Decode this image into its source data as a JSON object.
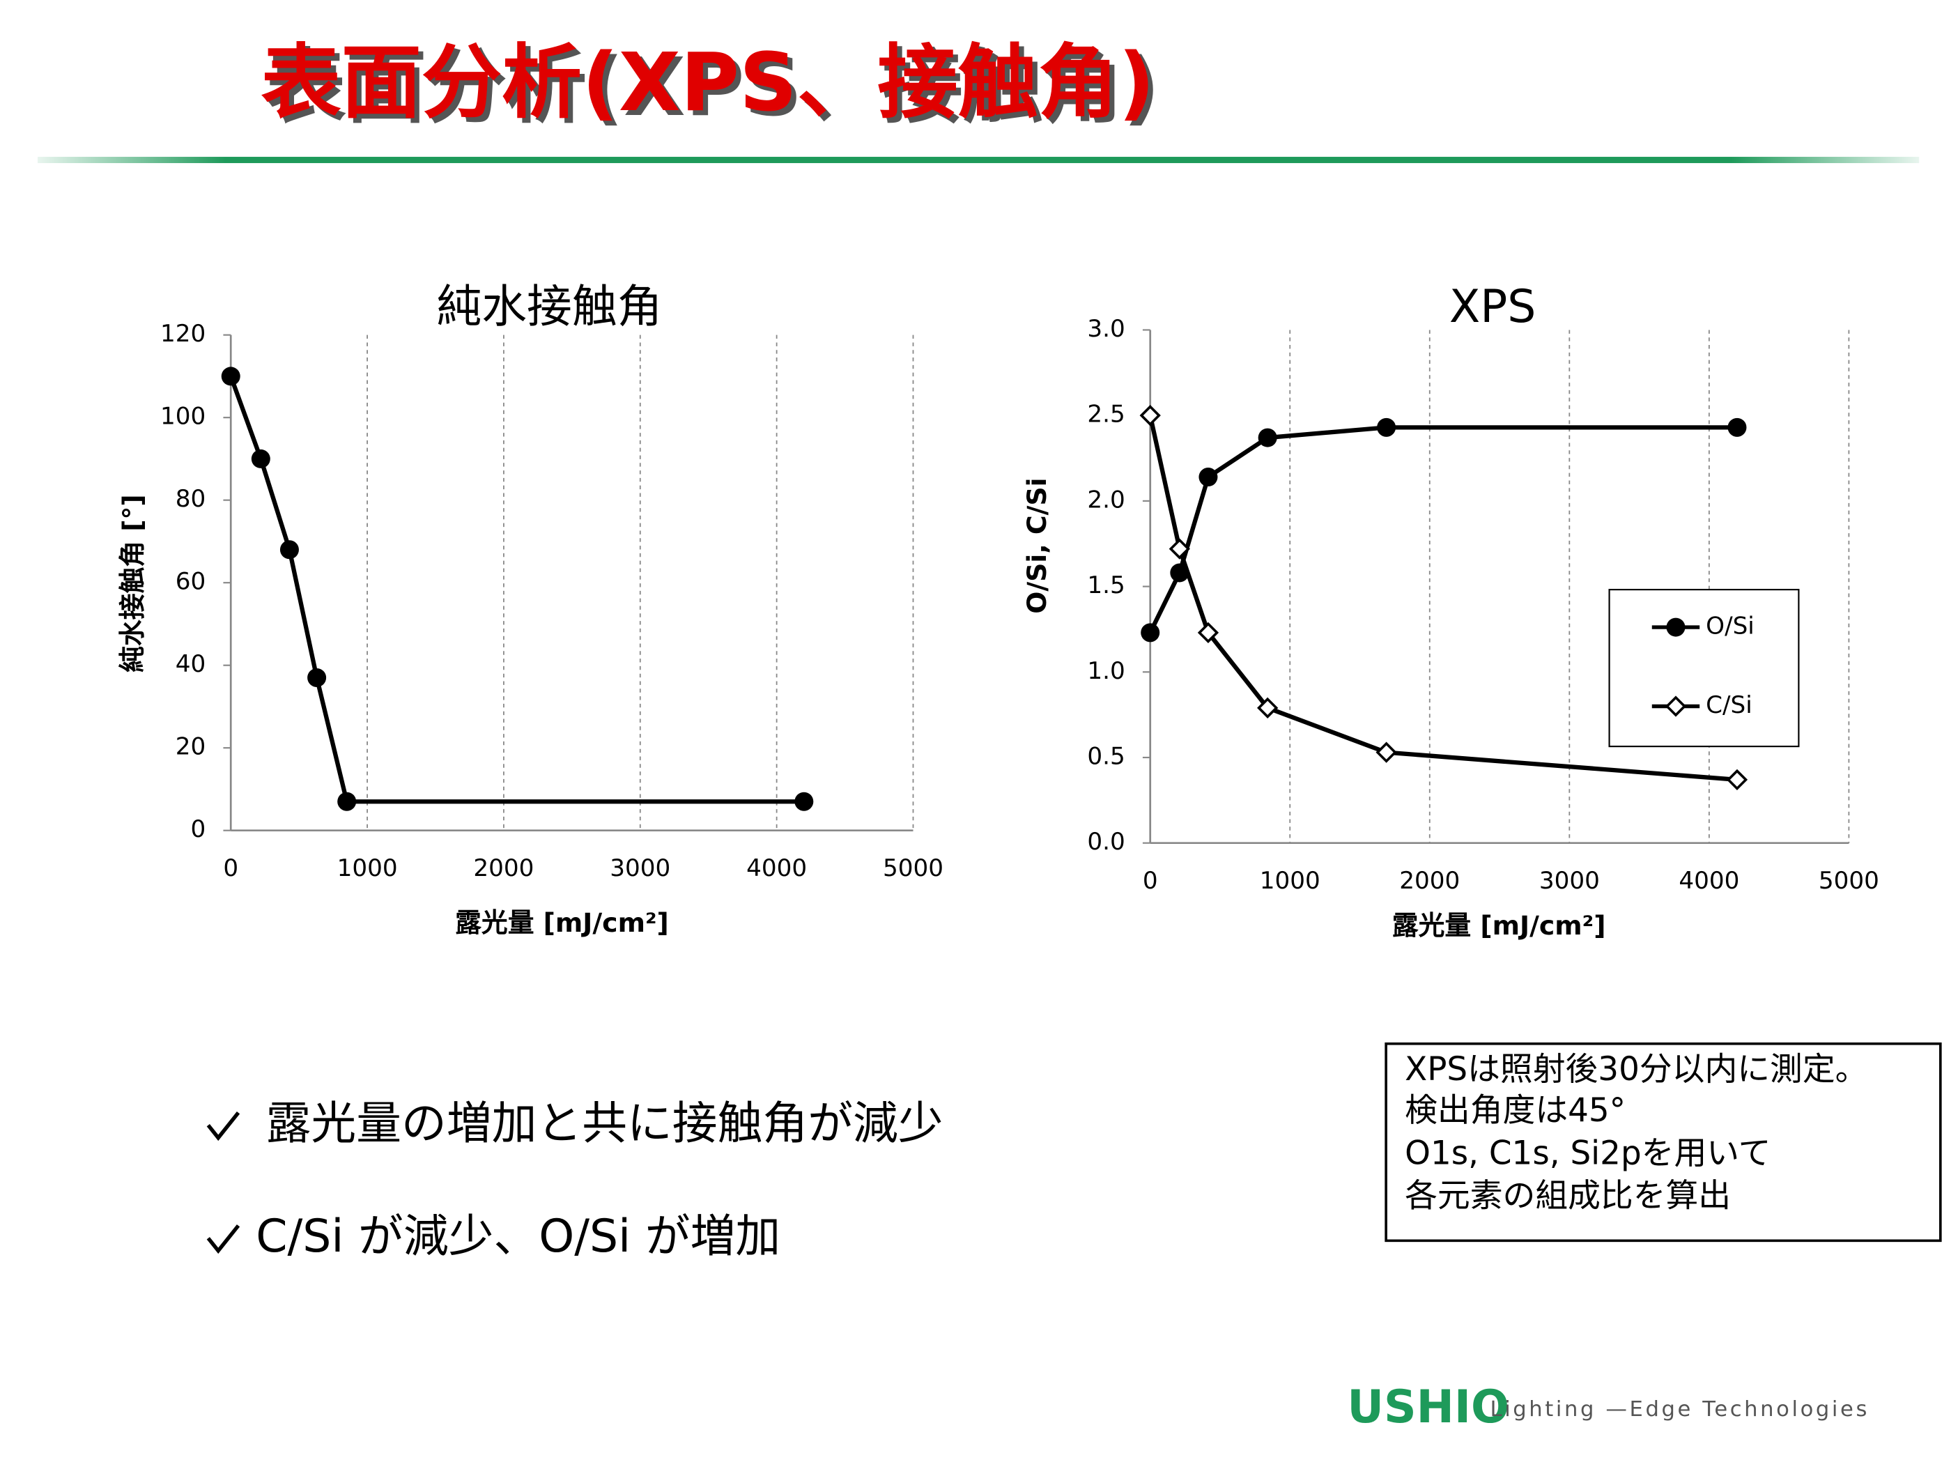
{
  "header": {
    "title": "表面分析(XPS、接触角)"
  },
  "chart_data": [
    {
      "type": "line",
      "title": "純水接触角",
      "x_label": "露光量 [mJ/cm²]",
      "y_label": "純水接触角 [°]",
      "x": [
        0,
        220,
        430,
        630,
        850,
        4200
      ],
      "values": [
        110,
        90,
        68,
        37,
        7,
        7
      ],
      "color": "#000000",
      "marker": "circle",
      "xlim": [
        0,
        5000
      ],
      "xticks": [
        0,
        1000,
        2000,
        3000,
        4000,
        5000
      ],
      "ylim": [
        0,
        120
      ],
      "yticks": [
        0,
        20,
        40,
        60,
        80,
        100,
        120
      ],
      "grid": "x-dashed"
    },
    {
      "type": "line",
      "title": "XPS",
      "x_label": "露光量 [mJ/cm²]",
      "y_label": "O/Si,  C/Si",
      "x": [
        0,
        210,
        415,
        840,
        1690,
        4200
      ],
      "series": [
        {
          "name": "O/Si",
          "color": "#000000",
          "marker": "circle",
          "values": [
            1.23,
            1.58,
            2.14,
            2.37,
            2.43,
            2.43
          ]
        },
        {
          "name": "C/Si",
          "color": "#000000",
          "marker": "diamond",
          "values": [
            2.5,
            1.72,
            1.23,
            0.79,
            0.53,
            0.37
          ]
        }
      ],
      "xlim": [
        0,
        5000
      ],
      "xticks": [
        0,
        1000,
        2000,
        3000,
        4000,
        5000
      ],
      "ylim": [
        0,
        3
      ],
      "yticks": [
        {
          "value": 0,
          "label": "0.0"
        },
        0.5,
        {
          "value": 1,
          "label": "1.0"
        },
        1.5,
        {
          "value": 2,
          "label": "2.0"
        },
        2.5,
        {
          "value": 3,
          "label": "3.0"
        }
      ],
      "grid": "x-dashed",
      "legend": "center right"
    }
  ],
  "bullets": [
    "露光量の増加と共に接触角が減少",
    "C/Si が減少、O/Si が増加"
  ],
  "note": {
    "lines": [
      "XPSは照射後30分以内に測定。",
      "検出角度は45°",
      "O1s, C1s, Si2pを用いて",
      "各元素の組成比を算出"
    ]
  },
  "footer": {
    "logo": "USHIO",
    "tagline": "Lighting —Edge Technologies"
  }
}
